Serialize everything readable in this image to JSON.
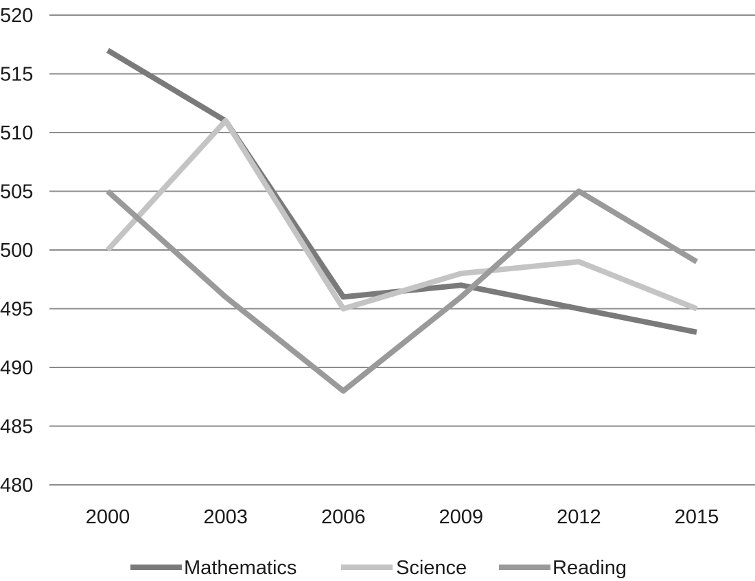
{
  "chart_data": {
    "type": "line",
    "title": "",
    "xlabel": "",
    "ylabel": "",
    "categories": [
      "2000",
      "2003",
      "2006",
      "2009",
      "2012",
      "2015"
    ],
    "ylim": [
      480,
      520
    ],
    "yticks": [
      480,
      485,
      490,
      495,
      500,
      505,
      510,
      515,
      520
    ],
    "grid": true,
    "legend_position": "bottom",
    "series": [
      {
        "name": "Mathematics",
        "color": "#7a7a7a",
        "values": [
          517,
          511,
          496,
          497,
          495,
          493
        ]
      },
      {
        "name": "Science",
        "color": "#c4c4c4",
        "values": [
          500,
          511,
          495,
          498,
          499,
          495
        ]
      },
      {
        "name": "Reading",
        "color": "#9a9a9a",
        "values": [
          505,
          496,
          488,
          496,
          505,
          499
        ]
      }
    ]
  }
}
